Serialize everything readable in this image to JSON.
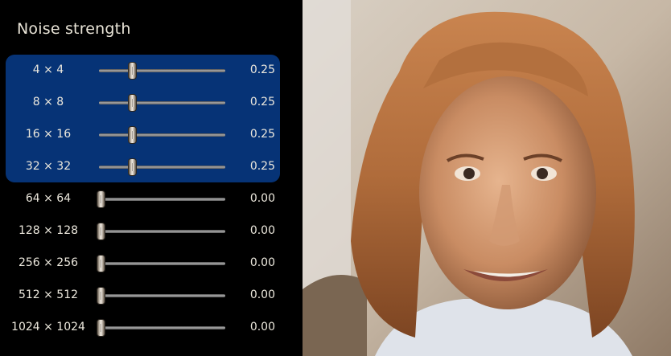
{
  "panel": {
    "title": "Noise strength",
    "sliders": [
      {
        "label": "4 × 4",
        "value": 0.25,
        "value_text": "0.25"
      },
      {
        "label": "8 × 8",
        "value": 0.25,
        "value_text": "0.25"
      },
      {
        "label": "16 × 16",
        "value": 0.25,
        "value_text": "0.25"
      },
      {
        "label": "32 × 32",
        "value": 0.25,
        "value_text": "0.25"
      },
      {
        "label": "64 × 64",
        "value": 0.0,
        "value_text": "0.00"
      },
      {
        "label": "128 × 128",
        "value": 0.0,
        "value_text": "0.00"
      },
      {
        "label": "256 × 256",
        "value": 0.0,
        "value_text": "0.00"
      },
      {
        "label": "512 × 512",
        "value": 0.0,
        "value_text": "0.00"
      },
      {
        "label": "1024 × 1024",
        "value": 0.0,
        "value_text": "0.00"
      }
    ],
    "slider_range": [
      0,
      1
    ],
    "highlight_color": "#063376"
  },
  "image": {
    "subject": "generated-face-photo"
  }
}
